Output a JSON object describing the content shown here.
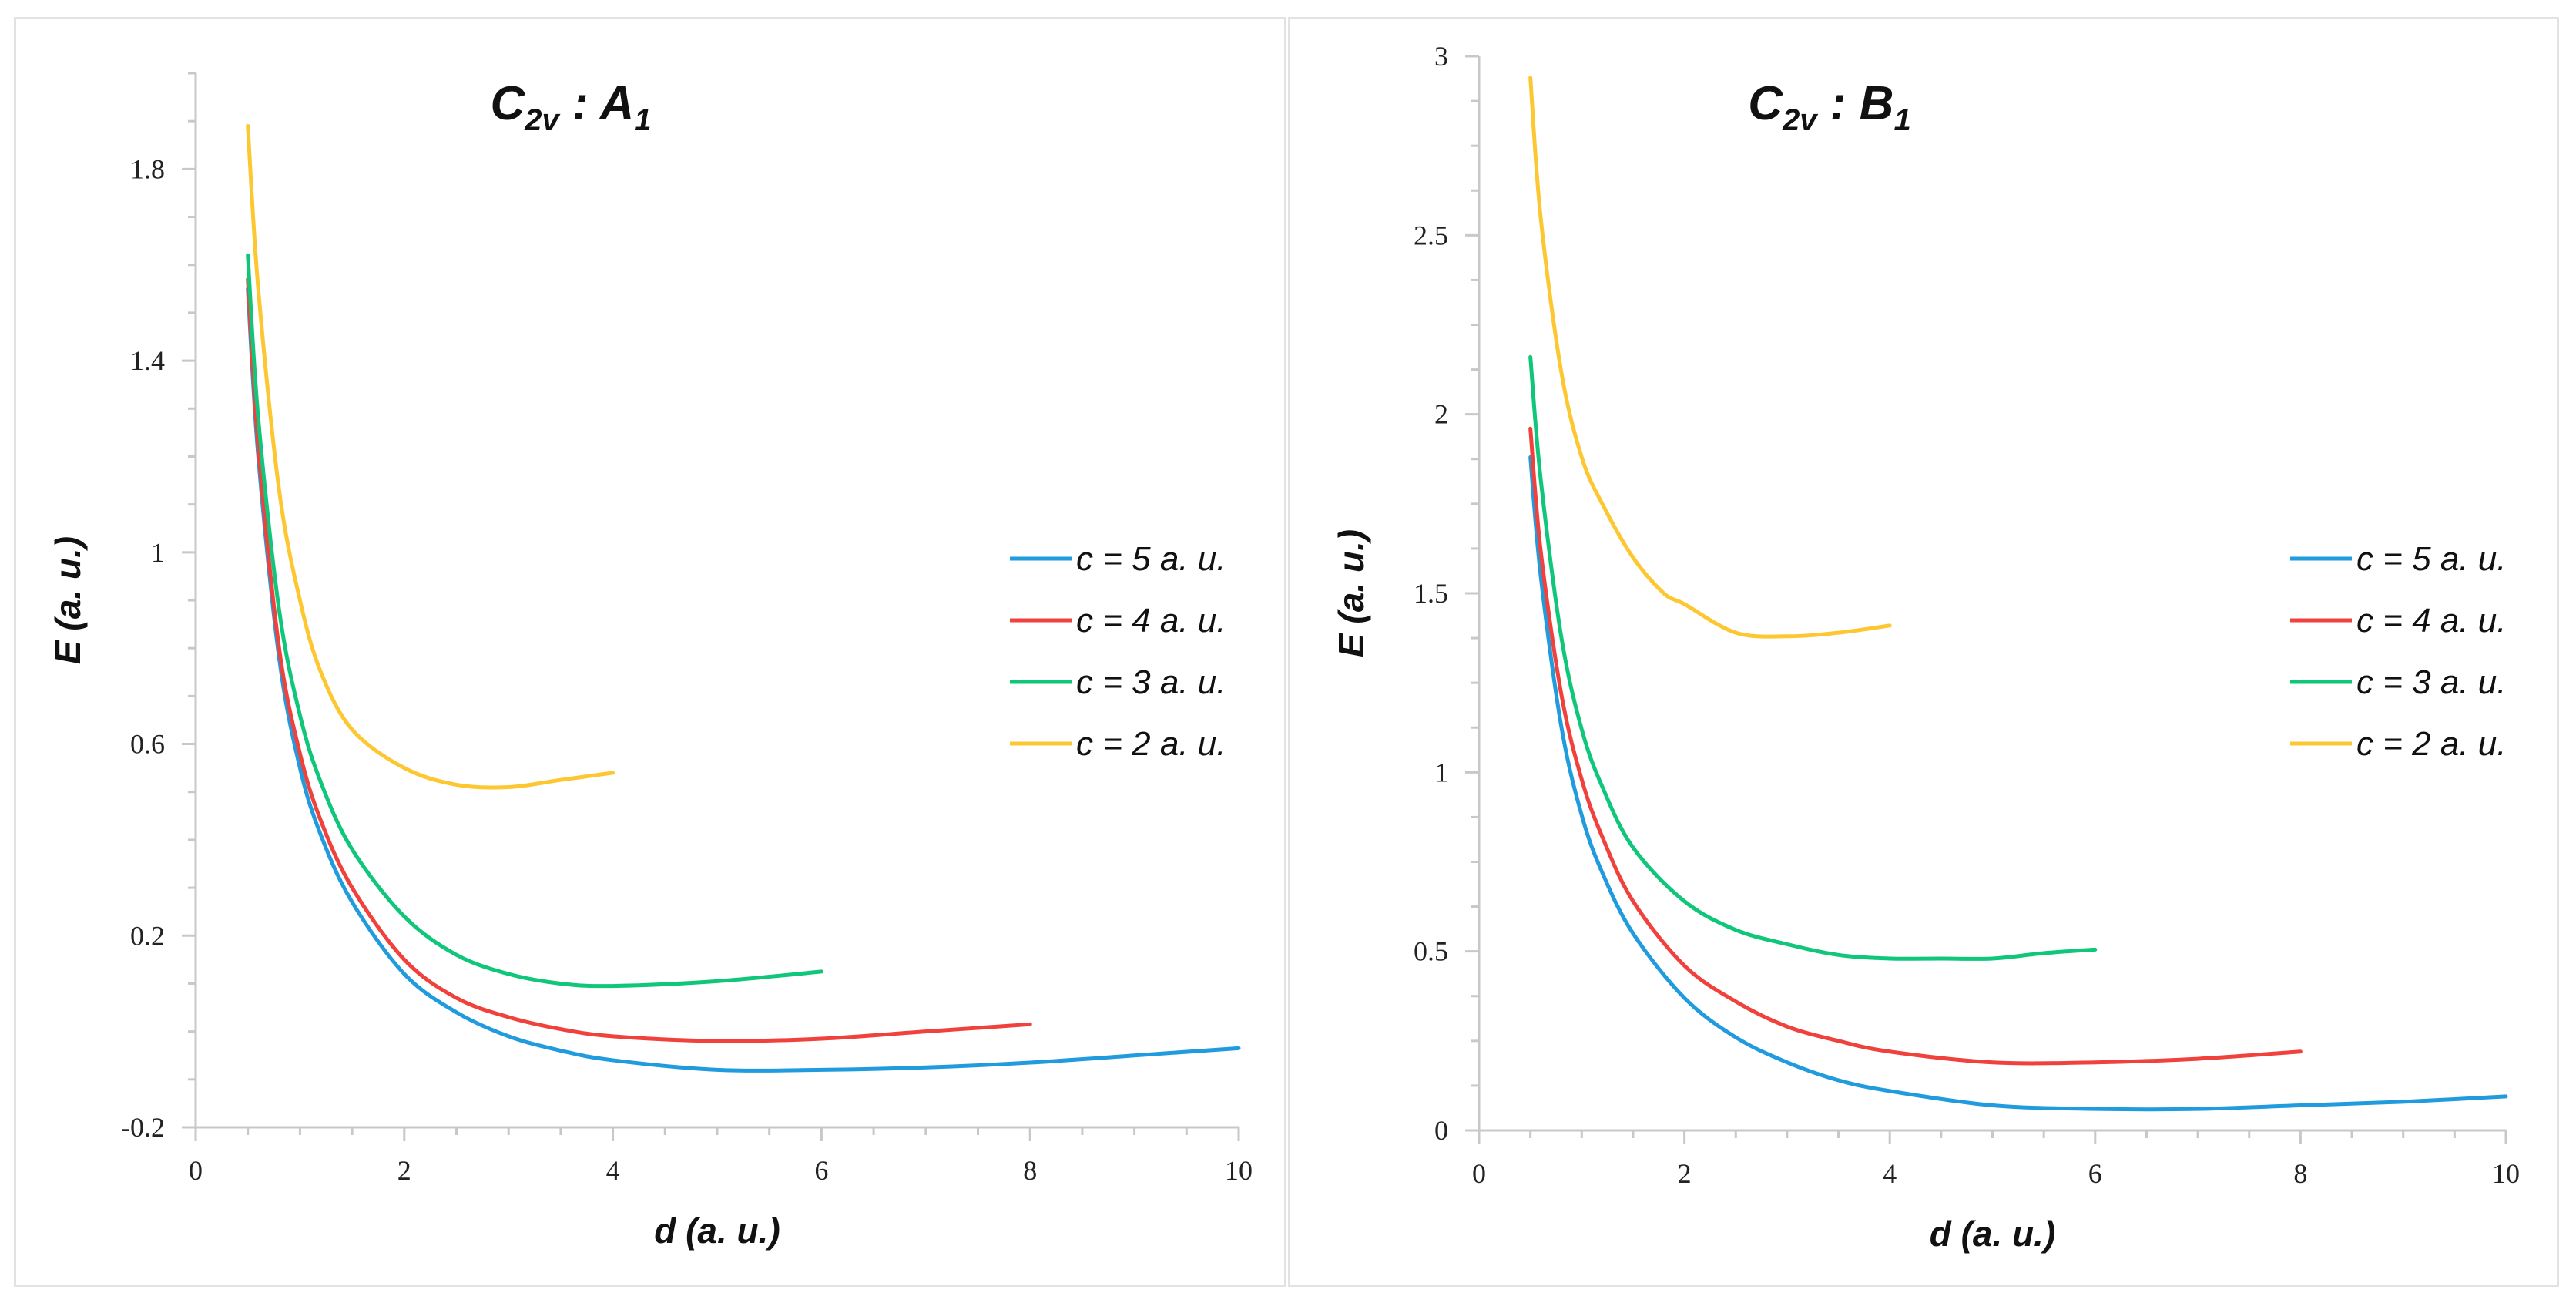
{
  "chart_data": [
    {
      "type": "line",
      "title": {
        "main": "C",
        "sub": "2v",
        "sep": " : ",
        "sym": "A",
        "symsub": "1"
      },
      "xlabel": "d (a. u.)",
      "ylabel": "E (a. u.)",
      "xlim": [
        0,
        10
      ],
      "ylim": [
        -0.2,
        2.0
      ],
      "xticks": [
        0,
        2,
        4,
        6,
        8,
        10
      ],
      "xtick_labels": [
        "0",
        "2",
        "4",
        "6",
        "8",
        "10"
      ],
      "yticks": [
        -0.2,
        0.2,
        0.6,
        1.0,
        1.4,
        1.8
      ],
      "ytick_labels": [
        "-0.2",
        "0.2",
        "0.6",
        "1",
        "1.4",
        "1.8"
      ],
      "legend_position": "right",
      "series": [
        {
          "name": "c = 5 a. u.",
          "color": "#1f9bde",
          "x": [
            0.5,
            0.6,
            0.8,
            1.0,
            1.2,
            1.5,
            2.0,
            2.5,
            3.0,
            3.5,
            4.0,
            5.0,
            6.0,
            7.0,
            8.0,
            9.0,
            10.0
          ],
          "y": [
            1.55,
            1.2,
            0.78,
            0.55,
            0.41,
            0.27,
            0.12,
            0.04,
            -0.01,
            -0.04,
            -0.06,
            -0.08,
            -0.08,
            -0.075,
            -0.065,
            -0.05,
            -0.035
          ]
        },
        {
          "name": "c = 4 a. u.",
          "color": "#f0413c",
          "x": [
            0.5,
            0.6,
            0.8,
            1.0,
            1.2,
            1.5,
            2.0,
            2.5,
            3.0,
            3.5,
            4.0,
            5.0,
            6.0,
            7.0,
            8.0
          ],
          "y": [
            1.57,
            1.22,
            0.8,
            0.58,
            0.44,
            0.3,
            0.15,
            0.07,
            0.03,
            0.005,
            -0.01,
            -0.02,
            -0.015,
            0.0,
            0.015
          ]
        },
        {
          "name": "c = 3 a. u.",
          "color": "#10c67a",
          "x": [
            0.5,
            0.6,
            0.8,
            1.0,
            1.2,
            1.5,
            2.0,
            2.5,
            3.0,
            3.5,
            4.0,
            5.0,
            6.0
          ],
          "y": [
            1.62,
            1.28,
            0.88,
            0.66,
            0.52,
            0.38,
            0.24,
            0.16,
            0.12,
            0.1,
            0.095,
            0.105,
            0.125
          ]
        },
        {
          "name": "c = 2 a. u.",
          "color": "#fdc732",
          "x": [
            0.5,
            0.6,
            0.8,
            1.0,
            1.2,
            1.5,
            2.0,
            2.5,
            3.0,
            3.5,
            4.0
          ],
          "y": [
            1.89,
            1.55,
            1.13,
            0.9,
            0.75,
            0.63,
            0.55,
            0.515,
            0.51,
            0.525,
            0.54
          ]
        }
      ]
    },
    {
      "type": "line",
      "title": {
        "main": "C",
        "sub": "2v",
        "sep": " : ",
        "sym": "B",
        "symsub": "1"
      },
      "xlabel": "d (a. u.)",
      "ylabel": "E (a. u.)",
      "xlim": [
        0,
        10
      ],
      "ylim": [
        0,
        3
      ],
      "xticks": [
        0,
        2,
        4,
        6,
        8,
        10
      ],
      "xtick_labels": [
        "0",
        "2",
        "4",
        "6",
        "8",
        "10"
      ],
      "yticks": [
        0,
        0.5,
        1.0,
        1.5,
        2.0,
        2.5,
        3.0
      ],
      "ytick_labels": [
        "0",
        "0.5",
        "1",
        "1.5",
        "2",
        "2.5",
        "3"
      ],
      "legend_position": "right",
      "series": [
        {
          "name": "c = 5 a. u.",
          "color": "#1f9bde",
          "x": [
            0.5,
            0.6,
            0.8,
            1.0,
            1.2,
            1.5,
            2.0,
            2.5,
            3.0,
            3.5,
            4.0,
            5.0,
            6.0,
            7.0,
            8.0,
            9.0,
            10.0
          ],
          "y": [
            1.88,
            1.55,
            1.13,
            0.88,
            0.72,
            0.55,
            0.37,
            0.26,
            0.19,
            0.14,
            0.11,
            0.07,
            0.06,
            0.06,
            0.07,
            0.08,
            0.095
          ]
        },
        {
          "name": "c = 4 a. u.",
          "color": "#f0413c",
          "x": [
            0.5,
            0.6,
            0.8,
            1.0,
            1.2,
            1.5,
            2.0,
            2.5,
            3.0,
            3.5,
            4.0,
            5.0,
            6.0,
            7.0,
            8.0
          ],
          "y": [
            1.96,
            1.62,
            1.22,
            0.98,
            0.82,
            0.64,
            0.46,
            0.36,
            0.29,
            0.25,
            0.22,
            0.19,
            0.19,
            0.2,
            0.22
          ]
        },
        {
          "name": "c = 3 a. u.",
          "color": "#10c67a",
          "x": [
            0.5,
            0.6,
            0.8,
            1.0,
            1.2,
            1.5,
            2.0,
            2.5,
            3.0,
            3.5,
            4.0,
            4.5,
            5.0,
            5.5,
            6.0
          ],
          "y": [
            2.16,
            1.82,
            1.38,
            1.12,
            0.96,
            0.79,
            0.64,
            0.56,
            0.52,
            0.49,
            0.48,
            0.48,
            0.48,
            0.495,
            0.505
          ]
        },
        {
          "name": "c = 2 a. u.",
          "color": "#fdc732",
          "x": [
            0.5,
            0.6,
            0.8,
            1.0,
            1.2,
            1.5,
            1.8,
            2.0,
            2.5,
            3.0,
            3.5,
            4.0
          ],
          "y": [
            2.94,
            2.55,
            2.12,
            1.88,
            1.75,
            1.6,
            1.5,
            1.47,
            1.39,
            1.38,
            1.39,
            1.41
          ]
        }
      ]
    }
  ]
}
